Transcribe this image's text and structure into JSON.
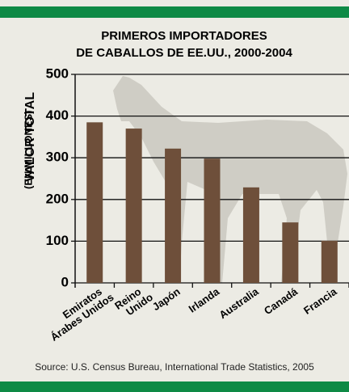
{
  "chart_data": {
    "type": "bar",
    "title": [
      "PRIMEROS IMPORTADORES",
      "DE CABALLOS DE EE.UU., 2000-2004"
    ],
    "y_label": [
      "VALOR TOTAL",
      "(EN MILLONES)"
    ],
    "categories": [
      [
        "Emiratos",
        "Árabes Unidos"
      ],
      [
        "Reino",
        "Unido"
      ],
      [
        "Japón"
      ],
      [
        "Irlanda"
      ],
      [
        "Australia"
      ],
      [
        "Canadá"
      ],
      [
        "Francia"
      ]
    ],
    "values": [
      385,
      370,
      322,
      298,
      229,
      145,
      101
    ],
    "color": "#6e4f3a",
    "ylim": [
      0,
      500
    ],
    "yticks": [
      0,
      100,
      200,
      300,
      400,
      500
    ],
    "grid": true,
    "source": "Source: U.S. Census Bureau, International Trade Statistics, 2005"
  }
}
